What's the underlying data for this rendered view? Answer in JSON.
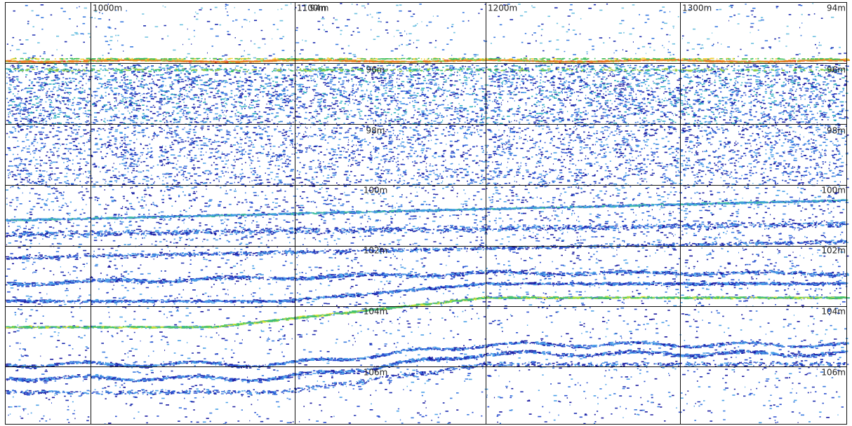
{
  "distance_labels": [
    "1000m",
    "1100m",
    "1200m",
    "1300m"
  ],
  "depth_labels_center": [
    "94m",
    "96m",
    "98m",
    "100m",
    "102m",
    "104m",
    "106m"
  ],
  "depth_labels_right": [
    "94m",
    "96m",
    "98m",
    "100m",
    "102m",
    "104m",
    "106m"
  ]
}
